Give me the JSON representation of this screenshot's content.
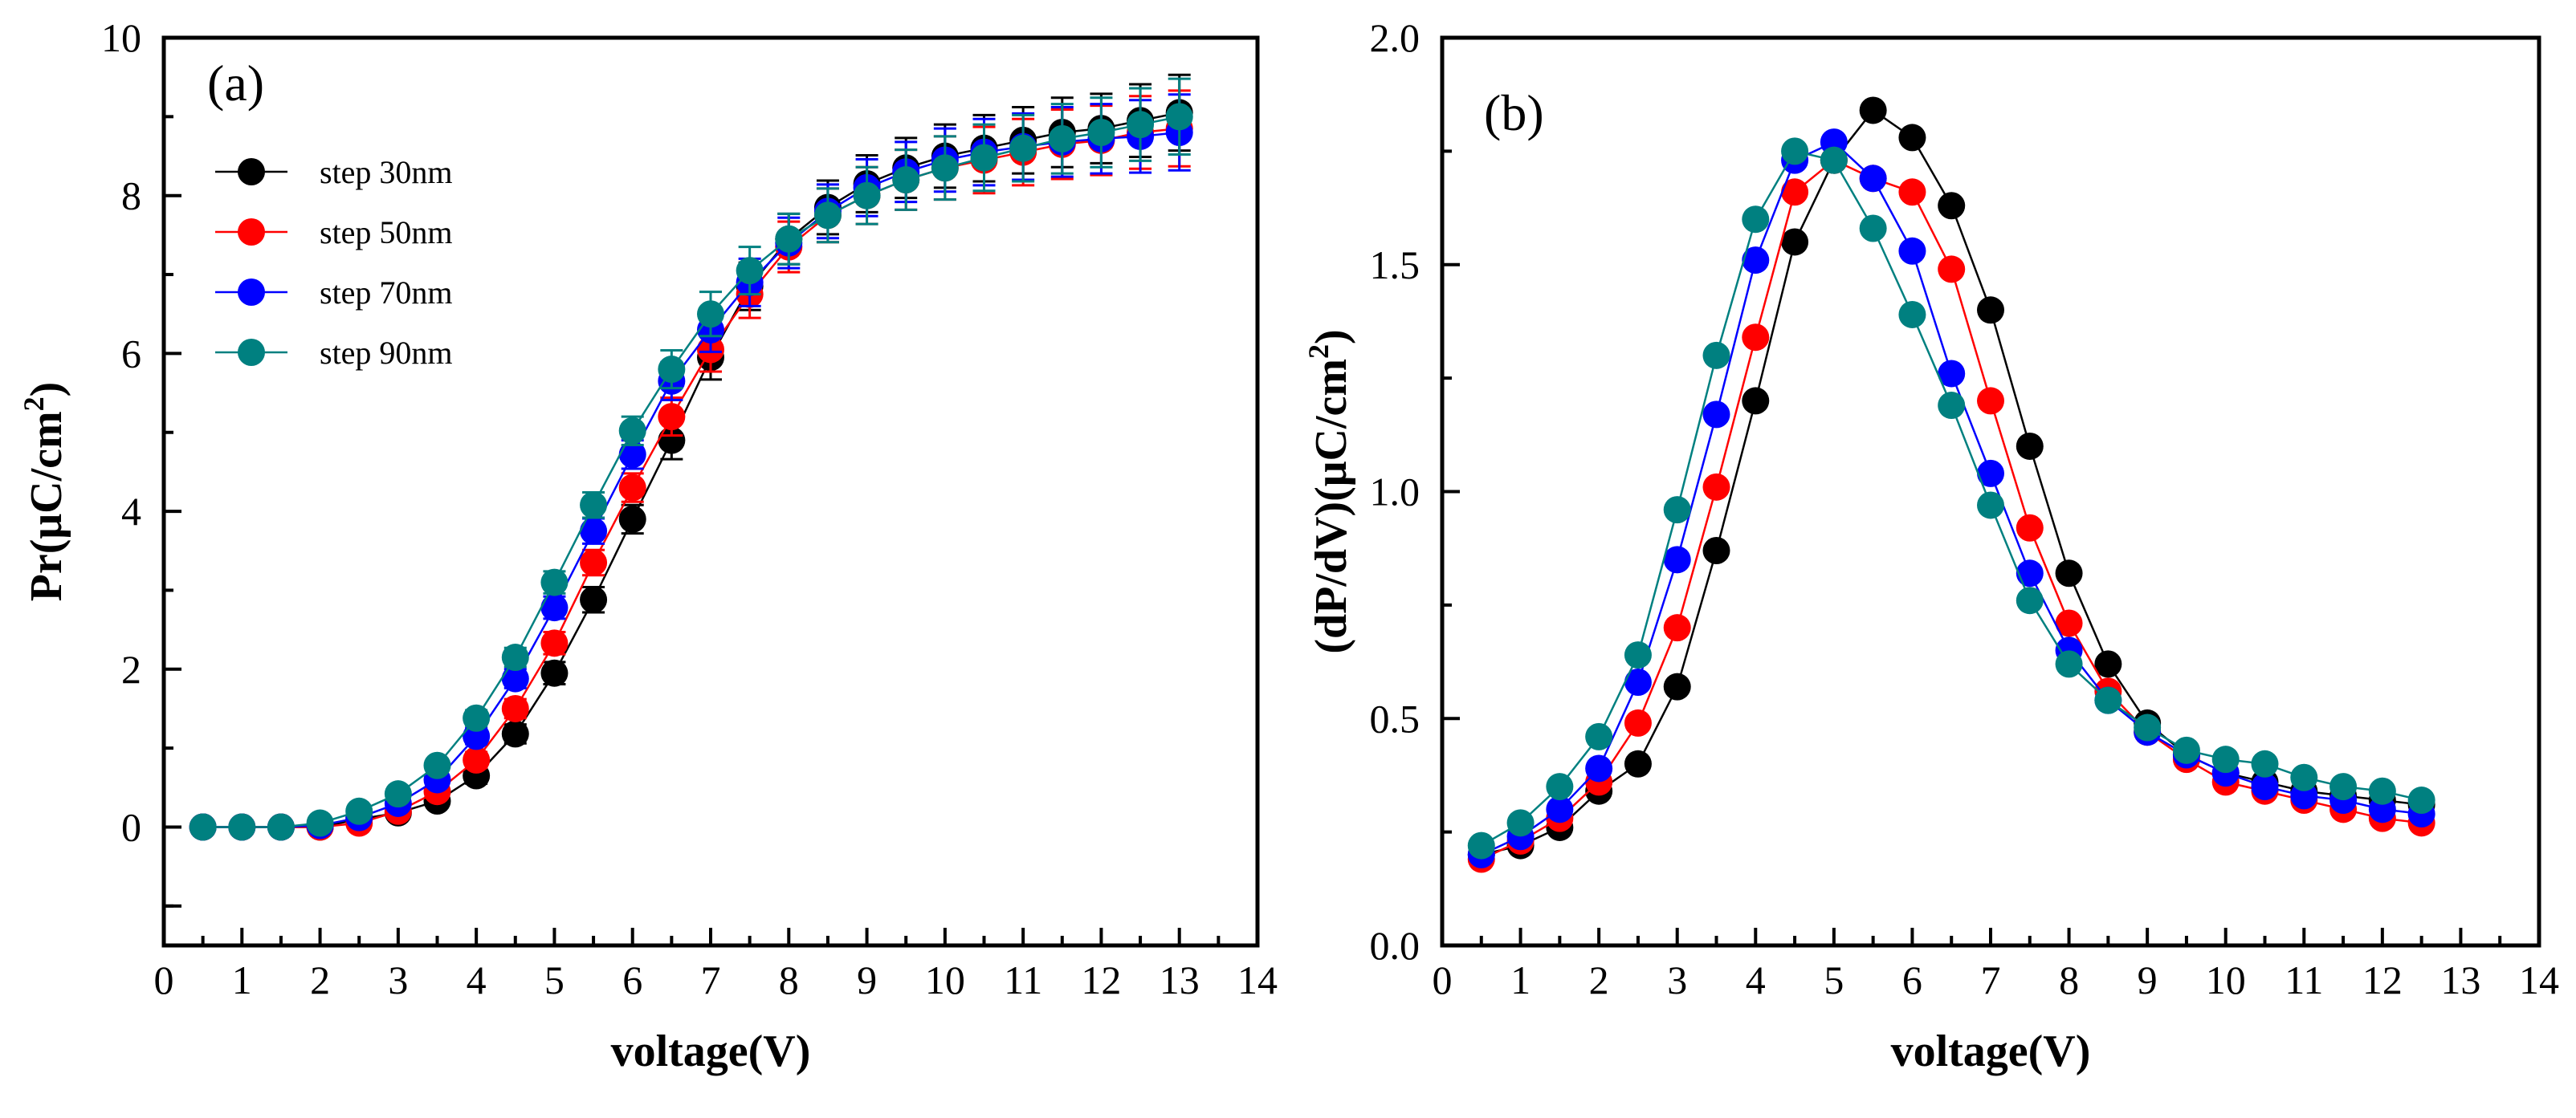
{
  "figure": {
    "series_names": [
      "step 30nm",
      "step 50nm",
      "step 70nm",
      "step 90nm"
    ],
    "series_colors": [
      "#000000",
      "#ff0000",
      "#0000ff",
      "#008080"
    ]
  },
  "chart_data": [
    {
      "type": "scatter",
      "panel_label": "(a)",
      "title": "",
      "xlabel": "voltage(V)",
      "ylabel": "Pr(μC/cm²)",
      "ylabel_main": "Pr(μC/cm",
      "ylabel_sup": "2",
      "ylabel_tail": ")",
      "xlim": [
        0,
        14
      ],
      "ylim": [
        -1.5,
        10
      ],
      "x_ticks": [
        0,
        1,
        2,
        3,
        4,
        5,
        6,
        7,
        8,
        9,
        10,
        11,
        12,
        13,
        14
      ],
      "y_ticks": [
        0,
        2,
        4,
        6,
        8,
        10
      ],
      "x_tick_labels": [
        "0",
        "1",
        "2",
        "3",
        "4",
        "5",
        "6",
        "7",
        "8",
        "9",
        "10",
        "11",
        "12",
        "13",
        "14"
      ],
      "y_tick_labels": [
        "0",
        "2",
        "4",
        "6",
        "8",
        "10"
      ],
      "legend_position": "upper-left",
      "error_bars": true,
      "x": [
        0.5,
        1,
        1.5,
        2,
        2.5,
        3,
        3.5,
        4,
        4.5,
        5,
        5.5,
        6,
        6.5,
        7,
        7.5,
        8,
        8.5,
        9,
        9.5,
        10,
        10.5,
        11,
        11.5,
        12,
        12.5,
        13
      ],
      "series": [
        {
          "name": "step 30nm",
          "color": "#000000",
          "values": [
            0,
            0,
            0,
            0,
            0.1,
            0.18,
            0.33,
            0.65,
            1.18,
            1.95,
            2.88,
            3.9,
            4.9,
            5.95,
            6.85,
            7.45,
            7.85,
            8.15,
            8.35,
            8.5,
            8.6,
            8.7,
            8.8,
            8.85,
            8.95,
            9.05
          ],
          "errors": [
            0.03,
            0.03,
            0.03,
            0.04,
            0.05,
            0.06,
            0.08,
            0.1,
            0.12,
            0.14,
            0.16,
            0.18,
            0.24,
            0.28,
            0.3,
            0.32,
            0.34,
            0.36,
            0.38,
            0.4,
            0.42,
            0.42,
            0.44,
            0.44,
            0.46,
            0.48
          ]
        },
        {
          "name": "step 50nm",
          "color": "#ff0000",
          "values": [
            0,
            0,
            0,
            0,
            0.05,
            0.2,
            0.45,
            0.85,
            1.5,
            2.33,
            3.35,
            4.3,
            5.2,
            6.05,
            6.75,
            7.35,
            7.75,
            8.0,
            8.2,
            8.35,
            8.45,
            8.55,
            8.65,
            8.7,
            8.8,
            8.85
          ],
          "errors": [
            0.03,
            0.03,
            0.03,
            0.04,
            0.05,
            0.06,
            0.08,
            0.1,
            0.12,
            0.14,
            0.16,
            0.18,
            0.24,
            0.28,
            0.3,
            0.32,
            0.34,
            0.36,
            0.38,
            0.4,
            0.42,
            0.42,
            0.44,
            0.44,
            0.46,
            0.48
          ]
        },
        {
          "name": "step 70nm",
          "color": "#0000ff",
          "values": [
            0,
            0,
            0,
            0.02,
            0.12,
            0.3,
            0.6,
            1.15,
            1.88,
            2.78,
            3.75,
            4.72,
            5.65,
            6.3,
            6.9,
            7.4,
            7.8,
            8.1,
            8.3,
            8.45,
            8.55,
            8.62,
            8.68,
            8.72,
            8.75,
            8.8
          ],
          "errors": [
            0.03,
            0.03,
            0.03,
            0.04,
            0.05,
            0.06,
            0.08,
            0.1,
            0.12,
            0.14,
            0.16,
            0.18,
            0.24,
            0.28,
            0.3,
            0.32,
            0.34,
            0.36,
            0.38,
            0.4,
            0.42,
            0.42,
            0.44,
            0.44,
            0.46,
            0.48
          ]
        },
        {
          "name": "step 90nm",
          "color": "#008080",
          "values": [
            0,
            0,
            0,
            0.05,
            0.2,
            0.42,
            0.78,
            1.38,
            2.15,
            3.1,
            4.08,
            5.02,
            5.8,
            6.5,
            7.05,
            7.45,
            7.75,
            8.0,
            8.2,
            8.35,
            8.48,
            8.6,
            8.72,
            8.8,
            8.9,
            9.0
          ],
          "errors": [
            0.03,
            0.03,
            0.03,
            0.04,
            0.05,
            0.06,
            0.08,
            0.1,
            0.12,
            0.14,
            0.16,
            0.18,
            0.24,
            0.28,
            0.3,
            0.32,
            0.34,
            0.36,
            0.38,
            0.4,
            0.42,
            0.42,
            0.44,
            0.44,
            0.46,
            0.48
          ]
        }
      ]
    },
    {
      "type": "scatter",
      "panel_label": "(b)",
      "title": "",
      "xlabel": "voltage(V)",
      "ylabel": "(dP/dV)(μC/cm²)",
      "ylabel_main": "(dP/dV)(μC/cm",
      "ylabel_sup": "2",
      "ylabel_tail": ")",
      "xlim": [
        0,
        14
      ],
      "ylim": [
        0,
        2.0
      ],
      "x_ticks": [
        0,
        1,
        2,
        3,
        4,
        5,
        6,
        7,
        8,
        9,
        10,
        11,
        12,
        13,
        14
      ],
      "y_ticks": [
        0,
        0.5,
        1.0,
        1.5,
        2.0
      ],
      "x_tick_labels": [
        "0",
        "1",
        "2",
        "3",
        "4",
        "5",
        "6",
        "7",
        "8",
        "9",
        "10",
        "11",
        "12",
        "13",
        "14"
      ],
      "y_tick_labels": [
        "0.0",
        "0.5",
        "1.0",
        "1.5",
        "2.0"
      ],
      "legend_position": "none",
      "error_bars": false,
      "x": [
        0.5,
        1,
        1.5,
        2,
        2.5,
        3,
        3.5,
        4,
        4.5,
        5,
        5.5,
        6,
        6.5,
        7,
        7.5,
        8,
        8.5,
        9,
        9.5,
        10,
        10.5,
        11,
        11.5,
        12,
        12.5
      ],
      "series": [
        {
          "name": "step 30nm",
          "color": "#000000",
          "values": [
            0.2,
            0.22,
            0.26,
            0.34,
            0.4,
            0.57,
            0.87,
            1.2,
            1.55,
            1.73,
            1.84,
            1.78,
            1.63,
            1.4,
            1.1,
            0.82,
            0.62,
            0.49,
            0.42,
            0.38,
            0.36,
            0.34,
            0.33,
            0.32,
            0.31
          ]
        },
        {
          "name": "step 50nm",
          "color": "#ff0000",
          "values": [
            0.19,
            0.23,
            0.28,
            0.36,
            0.49,
            0.7,
            1.01,
            1.34,
            1.66,
            1.73,
            1.69,
            1.66,
            1.49,
            1.2,
            0.92,
            0.71,
            0.56,
            0.47,
            0.41,
            0.36,
            0.34,
            0.32,
            0.3,
            0.28,
            0.27
          ]
        },
        {
          "name": "step 70nm",
          "color": "#0000ff",
          "values": [
            0.2,
            0.24,
            0.3,
            0.39,
            0.58,
            0.85,
            1.17,
            1.51,
            1.73,
            1.77,
            1.69,
            1.53,
            1.26,
            1.04,
            0.82,
            0.65,
            0.54,
            0.47,
            0.42,
            0.38,
            0.35,
            0.33,
            0.32,
            0.3,
            0.29
          ]
        },
        {
          "name": "step 90nm",
          "color": "#008080",
          "values": [
            0.22,
            0.27,
            0.35,
            0.46,
            0.64,
            0.96,
            1.3,
            1.6,
            1.75,
            1.73,
            1.58,
            1.39,
            1.19,
            0.97,
            0.76,
            0.62,
            0.54,
            0.48,
            0.43,
            0.41,
            0.4,
            0.37,
            0.35,
            0.34,
            0.32
          ]
        }
      ]
    }
  ]
}
